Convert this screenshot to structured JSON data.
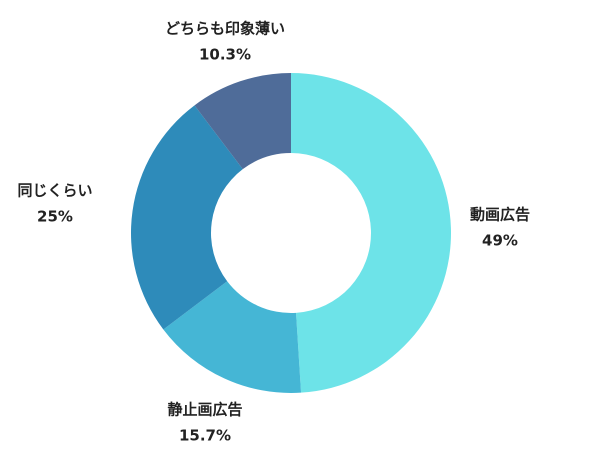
{
  "chart_data": {
    "type": "donut",
    "categories": [
      "動画広告",
      "静止画広告",
      "同じくらい",
      "どちらも印象薄い"
    ],
    "values": [
      49,
      15.7,
      25,
      10.3
    ],
    "value_labels": [
      "49%",
      "15.7%",
      "25%",
      "10.3%"
    ],
    "colors": [
      "#6de3e8",
      "#45b6d5",
      "#2e8bba",
      "#4f6c99"
    ]
  }
}
